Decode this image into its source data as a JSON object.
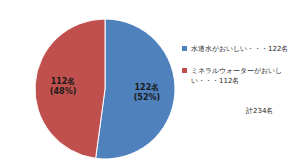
{
  "chart_data": {
    "type": "pie",
    "categories": [
      "水道水がおいしい・・・122名",
      "ミネラルウォーターがおいしい・・・112名"
    ],
    "values": [
      122,
      112
    ],
    "value_labels": [
      "122名",
      "112名"
    ],
    "percentages": [
      52,
      48
    ],
    "percentage_labels": [
      "(52%)",
      "(48%)"
    ],
    "colors": [
      "#4f81bd",
      "#c0504d"
    ],
    "legend": "right",
    "data_labels": true,
    "annotation": "計234名"
  }
}
